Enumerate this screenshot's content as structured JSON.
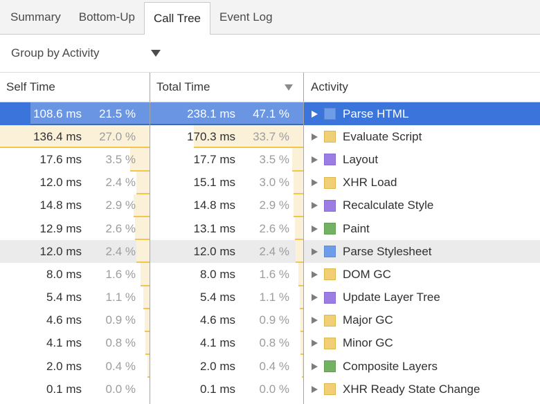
{
  "tabs": {
    "items": [
      {
        "label": "Summary",
        "active": false
      },
      {
        "label": "Bottom-Up",
        "active": false
      },
      {
        "label": "Call Tree",
        "active": true
      },
      {
        "label": "Event Log",
        "active": false
      }
    ]
  },
  "toolbar": {
    "group_by_label": "Group by Activity"
  },
  "table": {
    "columns": {
      "self": "Self Time",
      "total": "Total Time",
      "activity": "Activity"
    },
    "sort": {
      "column": "Total Time",
      "direction": "desc"
    },
    "colors": {
      "selection_bg": "#3b74da",
      "hover_bg": "#ebebeb",
      "bar_bg": "#faf1d8",
      "bar_border": "#f2c64b",
      "divider": "#a5a5a5",
      "category": {
        "loading": {
          "fill": "#6d9de8",
          "border": "#5b8bd8"
        },
        "scripting": {
          "fill": "#f0cf77",
          "border": "#ddb74d"
        },
        "rendering": {
          "fill": "#9c7de4",
          "border": "#8a69d2"
        },
        "painting": {
          "fill": "#74b163",
          "border": "#629e52"
        }
      }
    },
    "rows": [
      {
        "self_ms": "108.6 ms",
        "self_pct": "21.5 %",
        "total_ms": "238.1 ms",
        "total_pct": "47.1 %",
        "activity": "Parse HTML",
        "category": "loading",
        "state": "selected"
      },
      {
        "self_ms": "136.4 ms",
        "self_pct": "27.0 %",
        "total_ms": "170.3 ms",
        "total_pct": "33.7 %",
        "activity": "Evaluate Script",
        "category": "scripting",
        "state": ""
      },
      {
        "self_ms": "17.6 ms",
        "self_pct": "3.5 %",
        "total_ms": "17.7 ms",
        "total_pct": "3.5 %",
        "activity": "Layout",
        "category": "rendering",
        "state": ""
      },
      {
        "self_ms": "12.0 ms",
        "self_pct": "2.4 %",
        "total_ms": "15.1 ms",
        "total_pct": "3.0 %",
        "activity": "XHR Load",
        "category": "scripting",
        "state": ""
      },
      {
        "self_ms": "14.8 ms",
        "self_pct": "2.9 %",
        "total_ms": "14.8 ms",
        "total_pct": "2.9 %",
        "activity": "Recalculate Style",
        "category": "rendering",
        "state": ""
      },
      {
        "self_ms": "12.9 ms",
        "self_pct": "2.6 %",
        "total_ms": "13.1 ms",
        "total_pct": "2.6 %",
        "activity": "Paint",
        "category": "painting",
        "state": ""
      },
      {
        "self_ms": "12.0 ms",
        "self_pct": "2.4 %",
        "total_ms": "12.0 ms",
        "total_pct": "2.4 %",
        "activity": "Parse Stylesheet",
        "category": "loading",
        "state": "hover"
      },
      {
        "self_ms": "8.0 ms",
        "self_pct": "1.6 %",
        "total_ms": "8.0 ms",
        "total_pct": "1.6 %",
        "activity": "DOM GC",
        "category": "scripting",
        "state": ""
      },
      {
        "self_ms": "5.4 ms",
        "self_pct": "1.1 %",
        "total_ms": "5.4 ms",
        "total_pct": "1.1 %",
        "activity": "Update Layer Tree",
        "category": "rendering",
        "state": ""
      },
      {
        "self_ms": "4.6 ms",
        "self_pct": "0.9 %",
        "total_ms": "4.6 ms",
        "total_pct": "0.9 %",
        "activity": "Major GC",
        "category": "scripting",
        "state": ""
      },
      {
        "self_ms": "4.1 ms",
        "self_pct": "0.8 %",
        "total_ms": "4.1 ms",
        "total_pct": "0.8 %",
        "activity": "Minor GC",
        "category": "scripting",
        "state": ""
      },
      {
        "self_ms": "2.0 ms",
        "self_pct": "0.4 %",
        "total_ms": "2.0 ms",
        "total_pct": "0.4 %",
        "activity": "Composite Layers",
        "category": "painting",
        "state": ""
      },
      {
        "self_ms": "0.1 ms",
        "self_pct": "0.0 %",
        "total_ms": "0.1 ms",
        "total_pct": "0.0 %",
        "activity": "XHR Ready State Change",
        "category": "scripting",
        "state": ""
      }
    ]
  }
}
